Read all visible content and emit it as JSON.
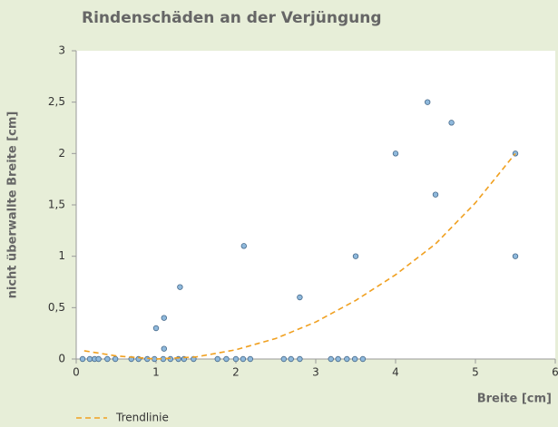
{
  "chart_data": {
    "type": "scatter",
    "title": "Rindenschäden an der Verjüngung",
    "x_label": "Breite [cm]",
    "y_label": "nicht überwallte Breite [cm]",
    "xlim": [
      0,
      6
    ],
    "xticks": [
      0,
      1,
      2,
      3,
      4,
      5,
      6
    ],
    "ylim": [
      0,
      3
    ],
    "yticks": [
      0,
      {
        "value": 0.5,
        "label": "0,5"
      },
      1,
      {
        "value": 1.5,
        "label": "1,5"
      },
      2,
      {
        "value": 2.5,
        "label": "2,5"
      },
      3
    ],
    "grid": false,
    "legend": "bottom-left",
    "series": [
      {
        "color": "#8fb9dc",
        "x": [
          0.08,
          0.17,
          0.23,
          0.28,
          0.39,
          0.49,
          0.69,
          0.78,
          0.89,
          0.98,
          1.09,
          1.18,
          1.28,
          1.35,
          1.47,
          1.77,
          1.88,
          2.0,
          2.09,
          2.18,
          2.6,
          2.69,
          2.8,
          3.19,
          3.28,
          3.39,
          3.49,
          3.59,
          1.0,
          1.1,
          1.1,
          1.3,
          2.1,
          2.8,
          3.5,
          4.0,
          4.4,
          4.5,
          4.7,
          5.5,
          5.5
        ],
        "values": [
          0,
          0,
          0,
          0,
          0,
          0,
          0,
          0,
          0,
          0,
          0,
          0,
          0,
          0,
          0,
          0,
          0,
          0,
          0,
          0,
          0,
          0,
          0,
          0,
          0,
          0,
          0,
          0,
          0.3,
          0.4,
          0.1,
          0.7,
          1.1,
          0.6,
          1.0,
          2.0,
          2.5,
          1.6,
          2.3,
          2.0,
          1.0
        ]
      },
      {
        "name": "Trendlinie",
        "color": "#f0a020",
        "style": "dashed",
        "x": [
          0.1,
          0.5,
          1,
          1.5,
          2,
          2.5,
          3,
          3.5,
          4,
          4.5,
          5,
          5.5
        ],
        "values": [
          0.08,
          0.03,
          0.0,
          0.02,
          0.09,
          0.2,
          0.36,
          0.57,
          0.82,
          1.12,
          1.52,
          2.0
        ]
      }
    ]
  }
}
